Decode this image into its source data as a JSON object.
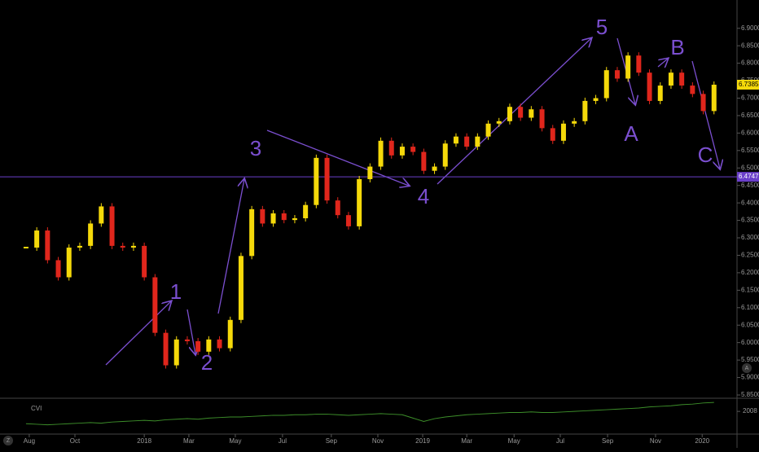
{
  "chart_data": {
    "type": "candlestick",
    "series": [
      {
        "name": "Close",
        "up_color": "#f5d90a",
        "down_color": "#e0261c",
        "values": [
          6.272,
          6.321,
          6.236,
          6.187,
          6.272,
          6.277,
          6.341,
          6.39,
          6.277,
          6.272,
          6.277,
          6.187,
          6.028,
          5.935,
          6.009,
          6.004,
          5.974,
          6.009,
          5.984,
          6.065,
          6.248,
          6.382,
          6.341,
          6.37,
          6.351,
          6.356,
          6.394,
          6.529,
          6.407,
          6.365,
          6.333,
          6.468,
          6.504,
          6.578,
          6.536,
          6.561,
          6.546,
          6.492,
          6.504,
          6.57,
          6.59,
          6.561,
          6.59,
          6.627,
          6.634,
          6.675,
          6.644,
          6.668,
          6.614,
          6.578,
          6.627,
          6.634,
          6.692,
          6.7,
          6.78,
          6.756,
          6.822,
          6.773,
          6.692,
          6.736,
          6.773,
          6.736,
          6.712,
          6.663,
          6.7385
        ]
      }
    ],
    "xlim": [
      -2.42,
      66.14
    ],
    "xticks": [
      {
        "value": 0.3,
        "label": "Aug"
      },
      {
        "value": 4.55,
        "label": "Oct"
      },
      {
        "value": 11,
        "label": "2018"
      },
      {
        "value": 15.15,
        "label": "Mar"
      },
      {
        "value": 19.47,
        "label": "May"
      },
      {
        "value": 23.86,
        "label": "Jul"
      },
      {
        "value": 28.4,
        "label": "Sep"
      },
      {
        "value": 32.73,
        "label": "Nov"
      },
      {
        "value": 36.9,
        "label": "2019"
      },
      {
        "value": 41,
        "label": "Mar"
      },
      {
        "value": 45.4,
        "label": "May"
      },
      {
        "value": 49.7,
        "label": "Jul"
      },
      {
        "value": 54.1,
        "label": "Sep"
      },
      {
        "value": 58.56,
        "label": "Nov"
      },
      {
        "value": 62.9,
        "label": "2020"
      }
    ],
    "ylim": [
      5.843,
      6.981
    ],
    "yticks": [
      {
        "value": 5.85,
        "label": "5.8500"
      },
      {
        "value": 5.9,
        "label": "5.9000"
      },
      {
        "value": 5.95,
        "label": "5.9500"
      },
      {
        "value": 6.0,
        "label": "6.0000"
      },
      {
        "value": 6.05,
        "label": "6.0500"
      },
      {
        "value": 6.1,
        "label": "6.1000"
      },
      {
        "value": 6.15,
        "label": "6.1500"
      },
      {
        "value": 6.2,
        "label": "6.2000"
      },
      {
        "value": 6.25,
        "label": "6.2500"
      },
      {
        "value": 6.3,
        "label": "6.3000"
      },
      {
        "value": 6.35,
        "label": "6.3500"
      },
      {
        "value": 6.4,
        "label": "6.4000"
      },
      {
        "value": 6.45,
        "label": "6.4500"
      },
      {
        "value": 6.5,
        "label": "6.5000"
      },
      {
        "value": 6.55,
        "label": "6.5500"
      },
      {
        "value": 6.6,
        "label": "6.6000"
      },
      {
        "value": 6.65,
        "label": "6.6500"
      },
      {
        "value": 6.7,
        "label": "6.7000"
      },
      {
        "value": 6.75,
        "label": "6.7500"
      },
      {
        "value": 6.8,
        "label": "6.8000"
      },
      {
        "value": 6.85,
        "label": "6.8500"
      },
      {
        "value": 6.9,
        "label": "6.9000"
      }
    ],
    "price_tags": [
      {
        "value": 6.7385,
        "label": "6.7385",
        "color": "#f5d90a"
      },
      {
        "value": 6.4747,
        "label": "6.4747",
        "color": "#6a3fc9"
      }
    ],
    "level_line": {
      "value": 6.4747,
      "color": "#6a3fc9"
    },
    "wave_labels": [
      "1",
      "2",
      "3",
      "4",
      "5",
      "A",
      "B",
      "C"
    ],
    "indicator": {
      "name": "CVI",
      "color": "#3d8f2a",
      "values": [
        1986,
        1985,
        1984,
        1985,
        1986,
        1987,
        1988,
        1987,
        1989,
        1990,
        1991,
        1992,
        1991,
        1993,
        1994,
        1995,
        1994,
        1996,
        1997,
        1998,
        1998,
        1999,
        2000,
        2001,
        2001,
        2002,
        2002,
        2003,
        2003,
        2002,
        2001,
        2002,
        2003,
        2004,
        2003,
        2002,
        1996,
        1990,
        1995,
        1998,
        2000,
        2002,
        2003,
        2004,
        2005,
        2006,
        2006,
        2007,
        2006,
        2006,
        2007,
        2008,
        2009,
        2010,
        2011,
        2012,
        2013,
        2014,
        2016,
        2017,
        2018,
        2020,
        2021,
        2023,
        2024
      ],
      "ylim": [
        1950,
        2030
      ],
      "yticks": [
        2008
      ]
    },
    "corner_buttons": [
      "Z",
      "A"
    ]
  }
}
